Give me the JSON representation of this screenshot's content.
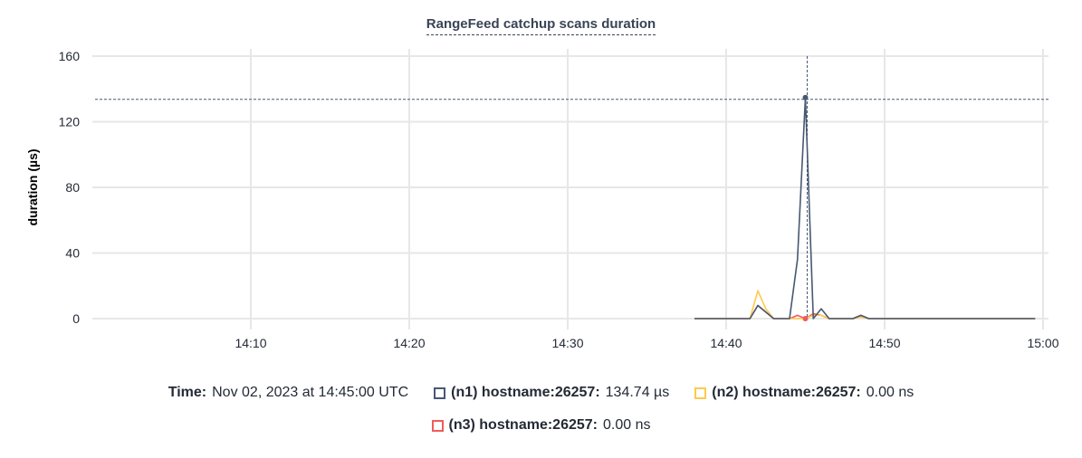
{
  "chart_data": {
    "type": "line",
    "title": "RangeFeed catchup scans duration",
    "ylabel": "duration (µs)",
    "xlabel": "",
    "ylim": [
      0,
      160
    ],
    "xlim": [
      "14:00",
      "15:00"
    ],
    "yticks": [
      "0",
      "40",
      "80",
      "120",
      "160"
    ],
    "xticks": [
      "14:10",
      "14:20",
      "14:30",
      "14:40",
      "14:50",
      "15:00"
    ],
    "grid": true,
    "hover_time": "14:45",
    "hover_value": 134.74,
    "x": [
      "14:38:00",
      "14:38:30",
      "14:39:00",
      "14:39:30",
      "14:40:00",
      "14:40:30",
      "14:41:00",
      "14:41:30",
      "14:42:00",
      "14:42:30",
      "14:43:00",
      "14:43:30",
      "14:44:00",
      "14:44:30",
      "14:45:00",
      "14:45:30",
      "14:46:00",
      "14:46:30",
      "14:47:00",
      "14:47:30",
      "14:48:00",
      "14:48:30",
      "14:49:00",
      "14:49:30",
      "14:50:00",
      "14:51:00",
      "14:52:00",
      "14:53:00",
      "14:54:00",
      "14:55:00",
      "14:56:00",
      "14:57:00",
      "14:58:00",
      "14:59:00",
      "14:59:30"
    ],
    "series": [
      {
        "name": "(n1) hostname:26257",
        "color": "#475872",
        "values": [
          0,
          0,
          0,
          0,
          0,
          0,
          0,
          0,
          8,
          4,
          0,
          0,
          0,
          36,
          134.74,
          0,
          6,
          0,
          0,
          0,
          0,
          2,
          0,
          0,
          0,
          0,
          0,
          0,
          0,
          0,
          0,
          0,
          0,
          0,
          0
        ]
      },
      {
        "name": "(n2) hostname:26257",
        "color": "#ffc94d",
        "values": [
          0,
          0,
          0,
          0,
          0,
          0,
          0,
          0,
          17,
          6,
          0,
          0,
          0,
          0,
          0,
          2,
          2,
          0,
          0,
          0,
          0,
          1,
          0,
          0,
          0,
          0,
          0,
          0,
          0,
          0,
          0,
          0,
          0,
          0,
          0
        ]
      },
      {
        "name": "(n3) hostname:26257",
        "color": "#f05c5c",
        "values": [
          0,
          0,
          0,
          0,
          0,
          0,
          0,
          0,
          8,
          4,
          0,
          0,
          0,
          2,
          0,
          3,
          2,
          0,
          0,
          0,
          0,
          2,
          0,
          0,
          0,
          0,
          0,
          0,
          0,
          0,
          0,
          0,
          0,
          0,
          0
        ]
      }
    ]
  },
  "legend": {
    "time_label": "Time:",
    "time_value": "Nov 02, 2023 at 14:45:00 UTC",
    "items": [
      {
        "label": "(n1) hostname:26257:",
        "value": "134.74 µs",
        "color": "#475872"
      },
      {
        "label": "(n2) hostname:26257:",
        "value": "0.00 ns",
        "color": "#ffc94d"
      },
      {
        "label": "(n3) hostname:26257:",
        "value": "0.00 ns",
        "color": "#f05c5c"
      }
    ]
  }
}
